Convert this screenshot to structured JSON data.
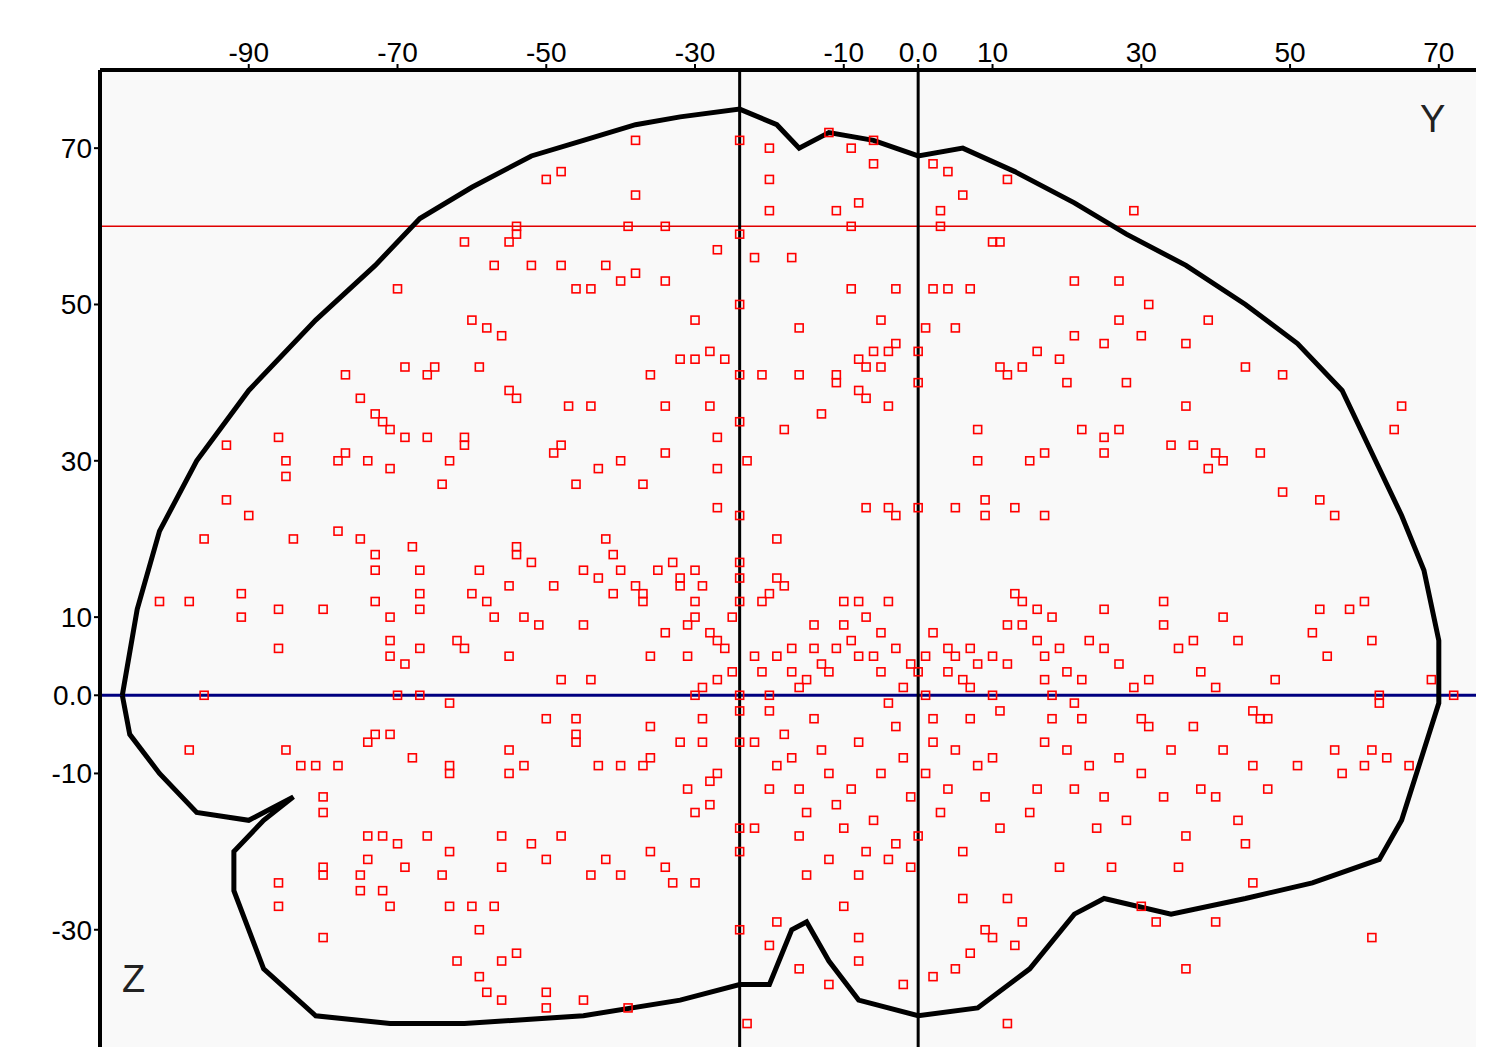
{
  "chart_data": {
    "type": "scatter",
    "x_label": "Y",
    "y_label": "Z",
    "xlim": [
      -110,
      75
    ],
    "xticks": [
      -90,
      -70,
      -50,
      -30,
      -10,
      {
        "value": 0,
        "label": "0.0"
      },
      10,
      30,
      50,
      70
    ],
    "ylim": [
      -45,
      80
    ],
    "yticks": [
      -30,
      -10,
      {
        "value": 0,
        "label": "0.0"
      },
      10,
      30,
      50,
      70
    ],
    "grid": false,
    "color": "#ff0000",
    "marker": "square",
    "x": [
      -38,
      -24,
      -20,
      -12,
      -9,
      -6,
      -6,
      2,
      4,
      6,
      -48,
      -50,
      -38,
      -20,
      -20,
      -11,
      -8,
      3,
      12,
      29,
      -24,
      -39,
      -34,
      -54,
      -55,
      -9,
      3,
      10,
      11,
      -27,
      -22,
      -17,
      -54,
      -61,
      -57,
      -52,
      -48,
      -42,
      -38,
      -34,
      -44,
      -46,
      -40,
      -70,
      -9,
      -3,
      2,
      4,
      7,
      21,
      27,
      -5,
      -60,
      -58,
      -56,
      -3,
      -4,
      -6,
      -30,
      -24,
      -16,
      -32,
      -28,
      -30,
      -26,
      -24,
      -21,
      -16,
      -11,
      -7,
      -8,
      -5,
      0,
      0,
      -11,
      -8,
      -7,
      -13,
      -4,
      -36,
      -24,
      -28,
      -77,
      -69,
      -66,
      -65,
      -59,
      -55,
      -54,
      -47,
      -44,
      -34,
      -73,
      -72,
      -71,
      -69,
      -66,
      -61,
      -77,
      -61,
      -48,
      -49,
      -34,
      -86,
      -85,
      -85,
      -78,
      -74,
      -71,
      -63,
      -64,
      -43,
      -46,
      -37,
      -27,
      -27,
      -23,
      -18,
      -40,
      -24,
      -27,
      -19,
      -75,
      1,
      5,
      11,
      12,
      14,
      16,
      19,
      28,
      25,
      36,
      39,
      30,
      44,
      49,
      36,
      20,
      21,
      27,
      31,
      8,
      8,
      15,
      17,
      22,
      25,
      25,
      27,
      34,
      37,
      39,
      41,
      40,
      46,
      49,
      54,
      56,
      64,
      65,
      -7,
      -4,
      -3,
      0,
      5,
      9,
      9,
      13,
      17,
      -93,
      -93,
      -90,
      -84,
      -78,
      -75,
      -73,
      -68,
      -67,
      -96,
      -73,
      -59,
      -54,
      -54,
      -52,
      -45,
      -40,
      -41,
      -42,
      -35,
      -33,
      -43,
      -38,
      -32,
      -29,
      -30,
      -41,
      -60,
      -55,
      -49,
      -37,
      -37,
      -32,
      -102,
      -98,
      -91,
      -91,
      -86,
      -80,
      -73,
      -71,
      -67,
      -67,
      -58,
      -57,
      -53,
      -51,
      -45,
      -86,
      -71,
      -67,
      -71,
      -69,
      -62,
      -61,
      -55,
      -48,
      -44,
      -70,
      -67,
      -63,
      -96,
      -98,
      -85,
      -83,
      -81,
      -78,
      -74,
      -73,
      -71,
      -63,
      -63,
      -55,
      -55,
      -53,
      -50,
      -46,
      -46,
      -46,
      -43,
      -40,
      -37,
      -36,
      -32,
      -36,
      -29,
      -80,
      -80,
      -74,
      -72,
      -70,
      -66,
      -63,
      -64,
      -56,
      -56,
      -52,
      -48,
      -42,
      -40,
      -44,
      -34,
      -30,
      -36,
      -86,
      -86,
      -80,
      -72,
      -71,
      -60,
      -57,
      -63,
      -59,
      -62,
      -59,
      -56,
      -54,
      -80,
      -58,
      -56,
      -50,
      -50,
      -45,
      -39,
      -33,
      -80,
      -74,
      -69,
      -75,
      -75,
      -50,
      -68,
      -36,
      -34,
      -30,
      -30,
      -31,
      -28,
      -27,
      -26,
      -25,
      -27,
      -29,
      -30,
      -31,
      -25,
      -24,
      -24,
      -24,
      -24,
      -24,
      -24,
      -24,
      -24,
      -24,
      -21,
      -20,
      -19,
      -18,
      -22,
      -21,
      -20,
      -19,
      -17,
      -17,
      -16,
      -15,
      -14,
      -14,
      -13,
      -12,
      -11,
      -10,
      -10,
      -8,
      -9,
      -8,
      -7,
      -6,
      -5,
      -4,
      -5,
      -3,
      -2,
      -1,
      0,
      1,
      1,
      2,
      4,
      4,
      5,
      6,
      7,
      7,
      8,
      10,
      10,
      11,
      12,
      12,
      13,
      14,
      14,
      16,
      16,
      17,
      17,
      18,
      18,
      19,
      20,
      21,
      22,
      23,
      25,
      25,
      27,
      29,
      30,
      31,
      33,
      33,
      35,
      37,
      38,
      40,
      41,
      43,
      45,
      46,
      47,
      48,
      55,
      53,
      54,
      58,
      60,
      61,
      62,
      56,
      57,
      60,
      61,
      63,
      66,
      69,
      -22,
      -20,
      -18,
      -17,
      -16,
      -15,
      -14,
      -13,
      -12,
      -11,
      -10,
      -9,
      -8,
      -7,
      -6,
      -5,
      -4,
      -3,
      -2,
      -1,
      0,
      -1,
      1,
      2,
      2,
      3,
      4,
      5,
      6,
      6,
      7,
      8,
      9,
      10,
      11,
      12,
      13,
      14,
      15,
      16,
      17,
      18,
      19,
      20,
      21,
      22,
      23,
      24,
      25,
      26,
      27,
      28,
      30,
      31,
      33,
      34,
      35,
      36,
      37,
      38,
      40,
      41,
      43,
      44,
      45,
      47,
      45,
      40,
      51,
      32,
      30,
      36,
      -30,
      -31,
      -28,
      -28,
      -29,
      -27,
      -22,
      -20,
      -19,
      -16,
      -15,
      -12,
      -10,
      -8,
      -8,
      -12,
      -19,
      -20,
      -16,
      -2,
      2,
      5,
      7,
      9,
      10,
      12,
      -8,
      -4,
      -3,
      61,
      72,
      62,
      -23
    ],
    "values": [
      71,
      71,
      70,
      72,
      70,
      71,
      68,
      68,
      67,
      64,
      67,
      66,
      64,
      66,
      62,
      62,
      63,
      62,
      66,
      62,
      59,
      60,
      60,
      60,
      58,
      60,
      60,
      58,
      58,
      57,
      56,
      56,
      59,
      58,
      55,
      55,
      55,
      55,
      54,
      53,
      52,
      52,
      53,
      52,
      52,
      52,
      52,
      52,
      52,
      53,
      53,
      48,
      48,
      47,
      46,
      45,
      44,
      44,
      48,
      50,
      47,
      43,
      44,
      43,
      43,
      41,
      41,
      41,
      41,
      42,
      43,
      42,
      44,
      40,
      40,
      39,
      38,
      36,
      37,
      41,
      35,
      37,
      41,
      42,
      41,
      42,
      42,
      39,
      38,
      37,
      37,
      37,
      36,
      35,
      34,
      33,
      33,
      33,
      31,
      32,
      32,
      31,
      31,
      33,
      30,
      28,
      30,
      30,
      29,
      30,
      27,
      29,
      27,
      27,
      33,
      29,
      30,
      34,
      30,
      23,
      24,
      20,
      38,
      47,
      47,
      42,
      41,
      42,
      44,
      43,
      40,
      45,
      45,
      48,
      46,
      42,
      41,
      37,
      40,
      46,
      48,
      50,
      34,
      30,
      30,
      31,
      34,
      33,
      31,
      34,
      32,
      32,
      29,
      30,
      31,
      31,
      26,
      25,
      23,
      34,
      37,
      24,
      24,
      23,
      24,
      24,
      23,
      25,
      24,
      23,
      32,
      25,
      23,
      20,
      21,
      20,
      18,
      19,
      16,
      20,
      16,
      16,
      18,
      19,
      17,
      16,
      16,
      18,
      20,
      16,
      17,
      15,
      14,
      15,
      14,
      16,
      13,
      13,
      14,
      14,
      13,
      12,
      14,
      12,
      12,
      13,
      10,
      11,
      11,
      12,
      10,
      13,
      11,
      12,
      10,
      10,
      9,
      9,
      6,
      7,
      6,
      5,
      4,
      7,
      6,
      5,
      2,
      2,
      0,
      0,
      -1,
      0,
      -7,
      -7,
      -9,
      -9,
      -9,
      -6,
      -5,
      -5,
      -9,
      -10,
      -7,
      -10,
      -9,
      -3,
      -3,
      -5,
      -6,
      -9,
      -9,
      -9,
      -8,
      -6,
      -4,
      -6,
      -13,
      -15,
      -18,
      -18,
      -19,
      -18,
      -20,
      -23,
      -18,
      -22,
      -19,
      -18,
      -21,
      -23,
      -23,
      -22,
      -24,
      -20,
      -24,
      -27,
      -23,
      -25,
      -27,
      -27,
      -27,
      -27,
      -30,
      -34,
      -36,
      -34,
      -33,
      -31,
      -38,
      -39,
      -38,
      -40,
      -39,
      -40,
      -24,
      -22,
      -21,
      -22,
      -23,
      -25,
      -21,
      -8,
      5,
      8,
      10,
      12,
      9,
      8,
      7,
      6,
      3,
      2,
      1,
      0,
      5,
      10,
      12,
      15,
      17,
      0,
      -2,
      -6,
      -17,
      -20,
      -30,
      12,
      13,
      15,
      14,
      5,
      3,
      0,
      5,
      6,
      3,
      1,
      2,
      9,
      6,
      4,
      3,
      6,
      9,
      12,
      12,
      7,
      5,
      10,
      5,
      8,
      12,
      3,
      6,
      1,
      4,
      3,
      5,
      0,
      8,
      6,
      3,
      5,
      2,
      1,
      6,
      4,
      5,
      0,
      -2,
      4,
      9,
      13,
      12,
      9,
      11,
      7,
      5,
      2,
      0,
      10,
      6,
      3,
      -1,
      2,
      7,
      11,
      6,
      4,
      1,
      -3,
      2,
      9,
      12,
      6,
      7,
      3,
      1,
      10,
      7,
      -2,
      -3,
      -3,
      2,
      5,
      8,
      11,
      11,
      12,
      7,
      0,
      -7,
      -10,
      -9,
      -7,
      -8,
      -9,
      2,
      -6,
      -2,
      -5,
      -8,
      -12,
      -15,
      -3,
      -7,
      -10,
      -14,
      -17,
      -12,
      -6,
      -20,
      -16,
      -10,
      -1,
      -4,
      -8,
      -13,
      -18,
      -22,
      -10,
      -3,
      -6,
      -15,
      -12,
      -7,
      -20,
      -26,
      -3,
      -9,
      -13,
      -8,
      -17,
      -26,
      -32,
      -29,
      -15,
      -12,
      -6,
      -3,
      -22,
      -7,
      -12,
      -3,
      -9,
      -17,
      -13,
      -22,
      -8,
      -16,
      -10,
      -4,
      -13,
      -7,
      -22,
      -18,
      -4,
      -12,
      -13,
      -7,
      -16,
      -19,
      -9,
      -12,
      -24,
      -29,
      -9,
      -29,
      -27,
      -35,
      -15,
      -12,
      -14,
      -11,
      -3,
      -10,
      -17,
      -12,
      -9,
      -18,
      -23,
      -21,
      -27,
      -31,
      -34,
      -37,
      -29,
      -32,
      -35,
      -37,
      -36,
      -35,
      -33,
      -30,
      -31,
      -42,
      -23,
      -21,
      -19,
      -31,
      0,
      -1,
      -42
    ],
    "outline": {
      "color": "#000000",
      "line_style": "solid",
      "x": [
        -107,
        -105,
        -102,
        -97,
        -90,
        -81,
        -73,
        -67,
        -60,
        -52,
        -45,
        -38,
        -32,
        -24,
        -19,
        -16,
        -12,
        -6,
        0,
        6,
        13,
        21,
        28,
        36,
        44,
        51,
        57,
        61,
        65,
        68,
        70,
        70,
        68,
        65,
        62,
        53,
        44,
        34,
        25,
        21,
        15,
        8,
        0,
        -8,
        -12,
        -15,
        -17,
        -20,
        -24,
        -32,
        -45,
        -61,
        -71,
        -81,
        -88,
        -92,
        -92,
        -88,
        -84,
        -90,
        -97,
        -102,
        -106,
        -107
      ],
      "values": [
        0,
        11,
        21,
        30,
        39,
        48,
        55,
        61,
        65,
        69,
        71,
        73,
        74,
        75,
        73,
        70,
        72,
        71,
        69,
        70,
        67,
        63,
        59,
        55,
        50,
        45,
        39,
        31,
        23,
        16,
        7,
        -1,
        -7,
        -16,
        -21,
        -24,
        -26,
        -28,
        -26,
        -28,
        -35,
        -40,
        -41,
        -39,
        -34,
        -29,
        -30,
        -37,
        -37,
        -39,
        -41,
        -42,
        -42,
        -41,
        -35,
        -25,
        -20,
        -16,
        -13,
        -16,
        -15,
        -10,
        -5,
        0
      ]
    },
    "reference_lines": [
      {
        "axis": "y",
        "value": 60,
        "color": "#e00000"
      },
      {
        "axis": "y",
        "value": 0,
        "color": "#000080"
      },
      {
        "axis": "x",
        "value": -24,
        "color": "#000000"
      },
      {
        "axis": "x",
        "value": 0,
        "color": "#000000"
      }
    ]
  }
}
